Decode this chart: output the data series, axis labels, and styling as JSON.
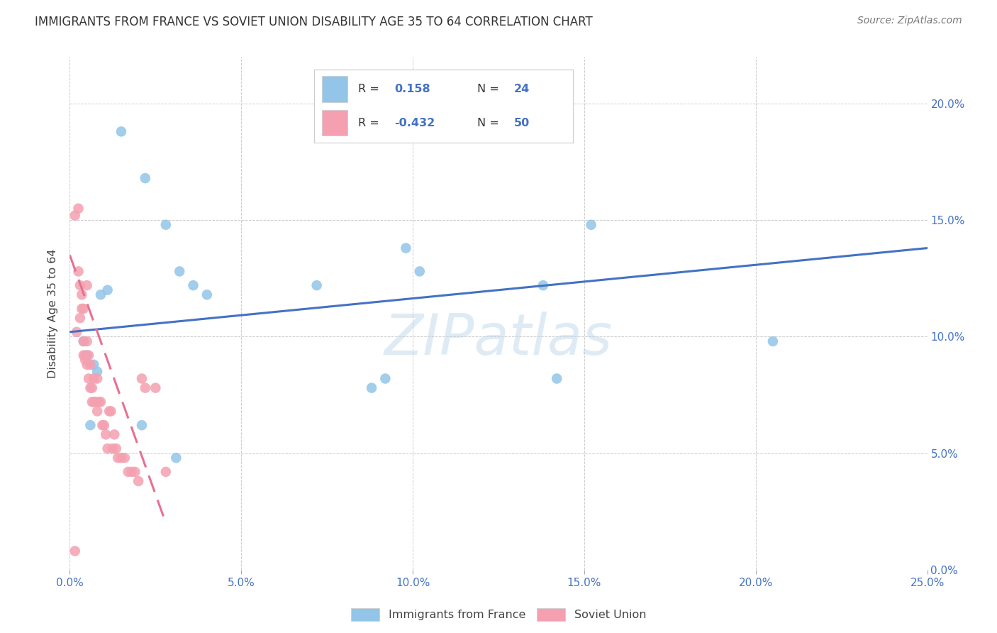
{
  "title": "IMMIGRANTS FROM FRANCE VS SOVIET UNION DISABILITY AGE 35 TO 64 CORRELATION CHART",
  "source": "Source: ZipAtlas.com",
  "ylabel": "Disability Age 35 to 64",
  "xlim": [
    0.0,
    25.0
  ],
  "ylim": [
    0.0,
    22.0
  ],
  "france_color": "#92C5E8",
  "soviet_color": "#F4A0B0",
  "france_R": "0.158",
  "france_N": "24",
  "soviet_R": "-0.432",
  "soviet_N": "50",
  "france_scatter_x": [
    1.5,
    2.2,
    2.8,
    0.4,
    0.5,
    0.7,
    0.9,
    3.2,
    3.6,
    4.0,
    7.2,
    8.8,
    9.2,
    9.8,
    10.2,
    13.8,
    14.2,
    15.2,
    0.6,
    2.1,
    3.1,
    20.5,
    0.8,
    1.1
  ],
  "france_scatter_y": [
    18.8,
    16.8,
    14.8,
    9.8,
    9.2,
    8.8,
    11.8,
    12.8,
    12.2,
    11.8,
    12.2,
    7.8,
    8.2,
    13.8,
    12.8,
    12.2,
    8.2,
    14.8,
    6.2,
    6.2,
    4.8,
    9.8,
    8.5,
    12.0
  ],
  "soviet_scatter_x": [
    0.15,
    0.25,
    0.25,
    0.3,
    0.35,
    0.35,
    0.4,
    0.4,
    0.45,
    0.45,
    0.5,
    0.5,
    0.55,
    0.55,
    0.6,
    0.6,
    0.65,
    0.65,
    0.7,
    0.7,
    0.75,
    0.8,
    0.8,
    0.85,
    0.9,
    0.95,
    1.0,
    1.05,
    1.1,
    1.15,
    1.2,
    1.25,
    1.3,
    1.35,
    1.4,
    1.5,
    1.6,
    1.7,
    1.8,
    1.9,
    2.0,
    2.1,
    2.2,
    2.5,
    2.8,
    0.2,
    0.3,
    0.4,
    0.5,
    0.15
  ],
  "soviet_scatter_y": [
    15.2,
    15.5,
    12.8,
    12.2,
    11.8,
    11.2,
    9.8,
    9.2,
    9.2,
    9.0,
    8.8,
    9.8,
    8.2,
    9.2,
    8.8,
    7.8,
    7.8,
    7.2,
    7.2,
    8.2,
    7.2,
    8.2,
    6.8,
    7.2,
    7.2,
    6.2,
    6.2,
    5.8,
    5.2,
    6.8,
    6.8,
    5.2,
    5.8,
    5.2,
    4.8,
    4.8,
    4.8,
    4.2,
    4.2,
    4.2,
    3.8,
    8.2,
    7.8,
    7.8,
    4.2,
    10.2,
    10.8,
    11.2,
    12.2,
    0.8
  ],
  "france_line_x": [
    0.0,
    25.0
  ],
  "france_line_y": [
    10.2,
    13.8
  ],
  "soviet_line_x": [
    0.0,
    2.8
  ],
  "soviet_line_y": [
    13.5,
    2.0
  ],
  "watermark_text": "ZIPatlas",
  "legend_france_label": "Immigrants from France",
  "legend_soviet_label": "Soviet Union",
  "france_line_color": "#4472C4",
  "soviet_line_color": "#E87090",
  "background_color": "#FFFFFF",
  "grid_color": "#CCCCCC"
}
